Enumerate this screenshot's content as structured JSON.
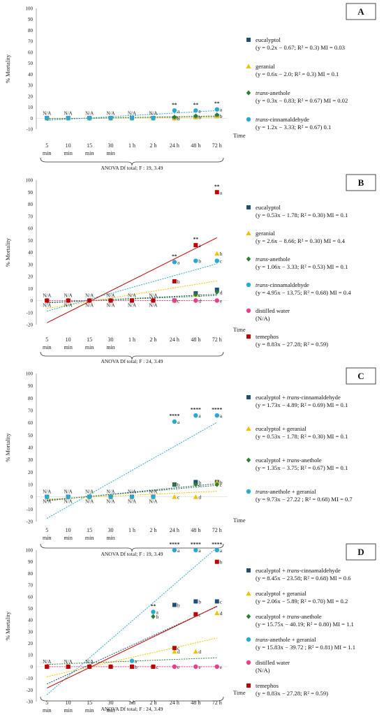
{
  "chart_data": [
    {
      "panel": "A",
      "type": "scatter",
      "ylabel": "% Mortality",
      "xlabel": "Time",
      "anova": "ANOVA Df total; F : 19, 3.49",
      "ylim": [
        -10,
        100
      ],
      "yticks": [
        -10,
        0,
        10,
        20,
        30,
        40,
        50,
        60,
        70,
        80,
        90,
        100
      ],
      "categories": [
        "5 min",
        "10 min",
        "15 min",
        "30 min",
        "1 h",
        "2 h",
        "24 h",
        "48 h",
        "72 h"
      ],
      "na_positions": [
        0,
        1,
        2,
        3,
        4,
        5
      ],
      "series": [
        {
          "name": "eucalyptol",
          "legend_detail": "(y = 0.2x − 0.67; R² = 0.3) MI = 0.03",
          "color": "#1f4e79",
          "marker": "square",
          "values": [
            0,
            0,
            0,
            0,
            0,
            0,
            0,
            1,
            2
          ],
          "letters": [
            "",
            "",
            "",
            "",
            "",
            "",
            "b",
            "b",
            "b"
          ]
        },
        {
          "name": "geranial",
          "legend_detail": "(y = 0.6x − 2.0; R² = 0.3) MI = 0.1",
          "color": "#f2c200",
          "marker": "triangle",
          "values": [
            0,
            0,
            0,
            0,
            0,
            0,
            0,
            1,
            2
          ],
          "letters": [
            "",
            "",
            "",
            "",
            "",
            "",
            "",
            "",
            ""
          ]
        },
        {
          "name": "trans-anethole",
          "legend_detail": "(y = 0.3x − 0.83; R² = 0.67) MI = 0.02",
          "color": "#2e7d32",
          "marker": "diamond",
          "values": [
            0,
            0,
            0,
            0,
            0,
            0,
            1,
            2,
            3
          ],
          "letters": [
            "",
            "",
            "",
            "",
            "",
            "",
            "c",
            "",
            ""
          ]
        },
        {
          "name": "trans-cinnamaldehyde",
          "legend_detail": "(y = 1.2x − 3.33; R² = 0.67) 0.1",
          "color": "#29a8d6",
          "marker": "circle",
          "values": [
            0,
            0,
            0,
            0,
            0,
            0,
            7,
            7,
            8
          ],
          "letters": [
            "",
            "",
            "",
            "",
            "",
            "",
            "a",
            "a",
            "a"
          ]
        }
      ],
      "significance": [
        "",
        "",
        "",
        "",
        "",
        "",
        "**",
        "**",
        "**"
      ]
    },
    {
      "panel": "B",
      "type": "scatter",
      "ylabel": "% Mortality",
      "xlabel": "Time",
      "anova": "ANOVA Df total; F : 24, 3.49",
      "ylim": [
        -20,
        100
      ],
      "yticks": [
        -20,
        -10,
        0,
        10,
        20,
        30,
        40,
        50,
        60,
        70,
        80,
        90,
        100
      ],
      "categories": [
        "5 min",
        "10 min",
        "15 min",
        "30 min",
        "1 h",
        "2 h",
        "24 h",
        "48 h",
        "72 h"
      ],
      "na_positions": [
        0,
        1,
        2,
        3,
        4,
        5
      ],
      "series": [
        {
          "name": "eucalyptol",
          "legend_detail": "(y = 0.53x − 1.78; R² = 0.30) MI = 0.1",
          "color": "#1f4e79",
          "marker": "square",
          "values": [
            0,
            0,
            0,
            0,
            0,
            0,
            0,
            6,
            9
          ],
          "letters": [
            "",
            "",
            "",
            "",
            "",
            "",
            "",
            "",
            ""
          ]
        },
        {
          "name": "geranial",
          "legend_detail": "(y = 2.6x − 8.66; R² = 0.30) MI = 0.4",
          "color": "#f2c200",
          "marker": "triangle",
          "values": [
            0,
            0,
            0,
            0,
            0,
            0,
            0,
            5,
            39
          ],
          "letters": [
            "",
            "",
            "",
            "",
            "",
            "",
            "",
            "",
            "b"
          ]
        },
        {
          "name": "trans-anethole",
          "legend_detail": "(y = 1.06x − 3.33; R² = 0.53) MI = 0.1",
          "color": "#2e7d32",
          "marker": "diamond",
          "values": [
            0,
            0,
            0,
            0,
            0,
            0,
            0,
            5,
            7
          ],
          "letters": [
            "",
            "",
            "",
            "",
            "",
            "",
            "",
            "c",
            "d"
          ]
        },
        {
          "name": "trans-cinnamaldehyde",
          "legend_detail": "(y = 4.95x − 13.75; R² = 0.68) MI = 0.4",
          "color": "#29a8d6",
          "marker": "circle",
          "values": [
            0,
            0,
            0,
            0,
            0,
            0,
            32,
            33,
            33
          ],
          "letters": [
            "",
            "",
            "",
            "",
            "",
            "",
            "a",
            "b",
            "c"
          ]
        },
        {
          "name": "distilled water",
          "legend_detail": "(N/A)",
          "color": "#e83e8c",
          "marker": "circle",
          "values": [
            0,
            0,
            0,
            0,
            0,
            0,
            0,
            0,
            0
          ],
          "letters": [
            "",
            "",
            "",
            "",
            "",
            "",
            "c",
            "d",
            "e"
          ]
        },
        {
          "name": "temephos",
          "legend_detail": "(y = 8.83x − 27.28; R² = 0.59)",
          "color": "#c00000",
          "marker": "square",
          "values": [
            0,
            0,
            0,
            0,
            0,
            0,
            16,
            46,
            90
          ],
          "letters": [
            "",
            "",
            "",
            "",
            "",
            "",
            "b",
            "a",
            "a"
          ]
        }
      ],
      "significance": [
        "",
        "",
        "",
        "",
        "",
        "",
        "**",
        "**",
        "**"
      ]
    },
    {
      "panel": "C",
      "type": "scatter",
      "ylabel": "% Mortality",
      "xlabel": "Time",
      "anova": "ANOVA Df total; F : 19, 3.49",
      "ylim": [
        -20,
        100
      ],
      "yticks": [
        -20,
        -10,
        0,
        10,
        20,
        30,
        40,
        50,
        60,
        70,
        80,
        90,
        100
      ],
      "categories": [
        "5 min",
        "10 min",
        "15 min",
        "30 min",
        "1 h",
        "2 h",
        "24 h",
        "48 h",
        "72 h"
      ],
      "na_positions": [
        0,
        1,
        2,
        3,
        4,
        5
      ],
      "series": [
        {
          "name": "eucalyptol + trans-cinnamaldehyde",
          "legend_detail": "(y = 1.73x − 4.89; R² = 0.69) MI = 0.1",
          "color": "#1f4e79",
          "marker": "square",
          "values": [
            0,
            0,
            0,
            0,
            0,
            0,
            10,
            12,
            12
          ],
          "letters": [
            "",
            "",
            "",
            "",
            "",
            "",
            "b",
            "b",
            "b"
          ]
        },
        {
          "name": "eucalyptol + geranial",
          "legend_detail": "(y = 0.53x − 1.78; R² = 0.30) MI = 0.1",
          "color": "#f2c200",
          "marker": "triangle",
          "values": [
            0,
            0,
            0,
            0,
            0,
            0,
            0,
            0,
            12
          ],
          "letters": [
            "",
            "",
            "",
            "",
            "",
            "",
            "c",
            "d",
            ""
          ]
        },
        {
          "name": "eucalyptol + trans-anethole",
          "legend_detail": "(y = 1.35x − 3.75; R² = 0.67) MI = 0.1",
          "color": "#2e7d32",
          "marker": "diamond",
          "values": [
            0,
            0,
            0,
            0,
            0,
            0,
            10,
            10,
            10
          ],
          "letters": [
            "",
            "",
            "",
            "",
            "",
            "",
            "",
            "c",
            "c"
          ]
        },
        {
          "name": "trans-anethole + geranial",
          "legend_detail": "(y = 9.73x − 27.22 ; R² = 0.68) MI = 0.7",
          "color": "#29a8d6",
          "marker": "circle",
          "values": [
            0,
            0,
            0,
            0,
            0,
            0,
            61,
            66,
            66
          ],
          "letters": [
            "",
            "",
            "",
            "",
            "",
            "",
            "a",
            "a",
            "a"
          ]
        }
      ],
      "significance": [
        "",
        "",
        "",
        "",
        "",
        "",
        "****",
        "****",
        "****"
      ]
    },
    {
      "panel": "D",
      "type": "scatter",
      "ylabel": "% Mortality",
      "xlabel": "Time",
      "anova": "ANOVA Df total; F : 24, 3.49",
      "ylim": [
        -30,
        100
      ],
      "yticks": [
        -30,
        -20,
        -10,
        0,
        10,
        20,
        30,
        40,
        50,
        60,
        70,
        80,
        90,
        100
      ],
      "categories": [
        "5 min",
        "10 min",
        "15 min",
        "30 min",
        "1 h",
        "2 h",
        "24 h",
        "48 h",
        "72 h"
      ],
      "na_positions": [
        0,
        1,
        2
      ],
      "series": [
        {
          "name": "eucalyptol + trans-cinnamaldehyde",
          "legend_detail": "(y = 8.45x − 23.58; R² = 0.68) MI = 0.6",
          "color": "#1f4e79",
          "marker": "square",
          "values": [
            0,
            0,
            0,
            0,
            0,
            0,
            53,
            56,
            56
          ],
          "letters": [
            "",
            "",
            "",
            "",
            "",
            "",
            "b",
            "b",
            "c"
          ]
        },
        {
          "name": "eucalyptol + geranial",
          "legend_detail": "(y = 2.06x − 5.89; R² = 0.70) MI = 0.2",
          "color": "#f2c200",
          "marker": "triangle",
          "values": [
            0,
            0,
            0,
            0,
            0,
            0,
            13,
            13,
            46
          ],
          "letters": [
            "",
            "",
            "",
            "",
            "",
            "",
            "d",
            "d",
            "d"
          ]
        },
        {
          "name": "eucalyptol + trans-anethole",
          "legend_detail": "(y = 15.75x − 40.19; R² = 0.80) MI = 1.1",
          "color": "#2e7d32",
          "marker": "diamond",
          "values": [
            0,
            0,
            0,
            0,
            0,
            43,
            0,
            0,
            0
          ],
          "letters": [
            "",
            "",
            "",
            "",
            "",
            "b",
            "",
            "",
            ""
          ]
        },
        {
          "name": "trans-anethole + geranial",
          "legend_detail": "(y = 15.83x − 39.72 ; R² = 0.81) MI = 1.1",
          "color": "#29a8d6",
          "marker": "circle",
          "values": [
            0,
            0,
            0,
            0,
            5,
            47,
            100,
            100,
            100
          ],
          "letters": [
            "",
            "",
            "",
            "",
            "a",
            "a",
            "a",
            "a",
            "a"
          ]
        },
        {
          "name": "distilled water",
          "legend_detail": "(N/A)",
          "color": "#e83e8c",
          "marker": "circle",
          "values": [
            0,
            0,
            0,
            0,
            0,
            0,
            0,
            0,
            0
          ],
          "letters": [
            "",
            "",
            "",
            "",
            "b",
            "c",
            "e",
            "e",
            "e"
          ]
        },
        {
          "name": "temephos",
          "legend_detail": "(y = 8.83x − 27.28; R² = 0.59)",
          "color": "#c00000",
          "marker": "square",
          "values": [
            0,
            0,
            0,
            0,
            0,
            0,
            16,
            45,
            90
          ],
          "letters": [
            "",
            "",
            "",
            "",
            "",
            "",
            "c",
            "c",
            "b"
          ]
        }
      ],
      "significance": [
        "",
        "",
        "",
        "",
        "",
        "**",
        "****",
        "****",
        "****"
      ]
    }
  ]
}
